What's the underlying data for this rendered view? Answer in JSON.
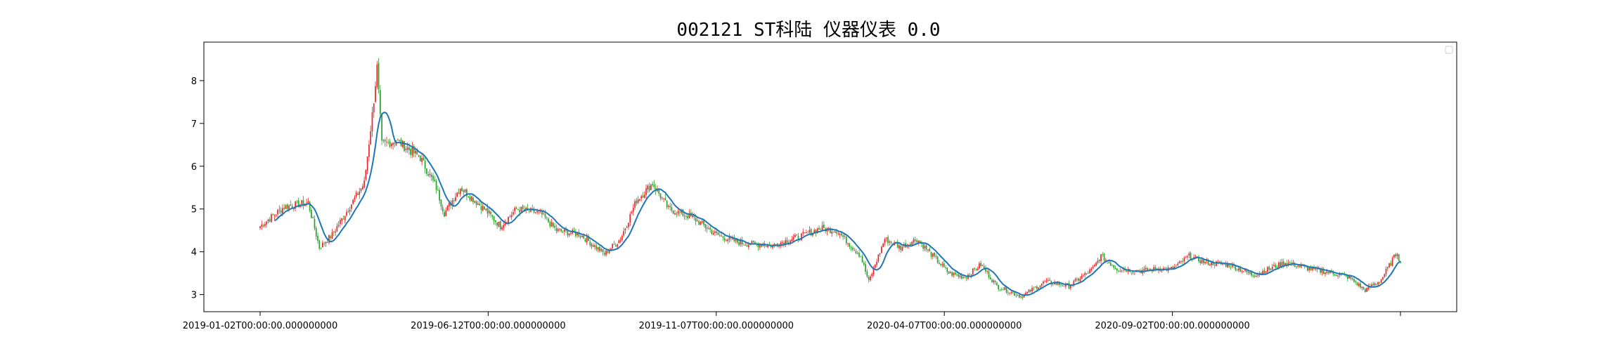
{
  "chart_data": {
    "type": "candlestick",
    "title": "002121 ST科陆 仪器仪表 0.0",
    "xlabel": "",
    "ylabel": "",
    "ylim": [
      2.6,
      8.9
    ],
    "y_ticks": [
      3,
      4,
      5,
      6,
      7,
      8
    ],
    "x_tick_labels": [
      "2019-01-02T00:00:00.000000000",
      "2019-06-12T00:00:00.000000000",
      "2019-11-07T00:00:00.000000000",
      "2020-04-07T00:00:00.000000000",
      "2020-09-02T00:00:00.000000000",
      ""
    ],
    "legend": "top-right (empty)",
    "grid": false,
    "colors": {
      "up": "#e8262a",
      "down": "#2ca02c",
      "ma_line": "#1f77b4"
    },
    "close_series": [
      {
        "day": 0,
        "close": 4.6
      },
      {
        "day": 15,
        "close": 5.05
      },
      {
        "day": 30,
        "close": 5.15
      },
      {
        "day": 37,
        "close": 4.1
      },
      {
        "day": 45,
        "close": 4.4
      },
      {
        "day": 60,
        "close": 5.3
      },
      {
        "day": 65,
        "close": 5.6
      },
      {
        "day": 70,
        "close": 7.2
      },
      {
        "day": 73,
        "close": 8.3
      },
      {
        "day": 76,
        "close": 6.5
      },
      {
        "day": 85,
        "close": 6.6
      },
      {
        "day": 100,
        "close": 6.2
      },
      {
        "day": 110,
        "close": 5.5
      },
      {
        "day": 115,
        "close": 4.9
      },
      {
        "day": 125,
        "close": 5.5
      },
      {
        "day": 140,
        "close": 5.0
      },
      {
        "day": 150,
        "close": 4.6
      },
      {
        "day": 160,
        "close": 5.0
      },
      {
        "day": 175,
        "close": 4.9
      },
      {
        "day": 185,
        "close": 4.5
      },
      {
        "day": 200,
        "close": 4.4
      },
      {
        "day": 215,
        "close": 3.95
      },
      {
        "day": 225,
        "close": 4.3
      },
      {
        "day": 235,
        "close": 5.2
      },
      {
        "day": 245,
        "close": 5.6
      },
      {
        "day": 255,
        "close": 5.0
      },
      {
        "day": 270,
        "close": 4.8
      },
      {
        "day": 285,
        "close": 4.4
      },
      {
        "day": 300,
        "close": 4.2
      },
      {
        "day": 320,
        "close": 4.15
      },
      {
        "day": 340,
        "close": 4.4
      },
      {
        "day": 350,
        "close": 4.55
      },
      {
        "day": 360,
        "close": 4.5
      },
      {
        "day": 375,
        "close": 3.9
      },
      {
        "day": 380,
        "close": 3.3
      },
      {
        "day": 390,
        "close": 4.3
      },
      {
        "day": 400,
        "close": 4.1
      },
      {
        "day": 410,
        "close": 4.3
      },
      {
        "day": 420,
        "close": 3.9
      },
      {
        "day": 430,
        "close": 3.5
      },
      {
        "day": 440,
        "close": 3.4
      },
      {
        "day": 450,
        "close": 3.7
      },
      {
        "day": 460,
        "close": 3.2
      },
      {
        "day": 475,
        "close": 2.95
      },
      {
        "day": 490,
        "close": 3.3
      },
      {
        "day": 505,
        "close": 3.2
      },
      {
        "day": 520,
        "close": 3.6
      },
      {
        "day": 525,
        "close": 3.9
      },
      {
        "day": 535,
        "close": 3.6
      },
      {
        "day": 550,
        "close": 3.55
      },
      {
        "day": 560,
        "close": 3.6
      },
      {
        "day": 570,
        "close": 3.6
      },
      {
        "day": 580,
        "close": 3.9
      },
      {
        "day": 590,
        "close": 3.75
      },
      {
        "day": 605,
        "close": 3.7
      },
      {
        "day": 620,
        "close": 3.45
      },
      {
        "day": 640,
        "close": 3.75
      },
      {
        "day": 655,
        "close": 3.6
      },
      {
        "day": 670,
        "close": 3.5
      },
      {
        "day": 680,
        "close": 3.4
      },
      {
        "day": 690,
        "close": 3.1
      },
      {
        "day": 700,
        "close": 3.35
      },
      {
        "day": 710,
        "close": 4.0
      },
      {
        "day": 712,
        "close": 3.7
      }
    ],
    "last_day": 712
  }
}
